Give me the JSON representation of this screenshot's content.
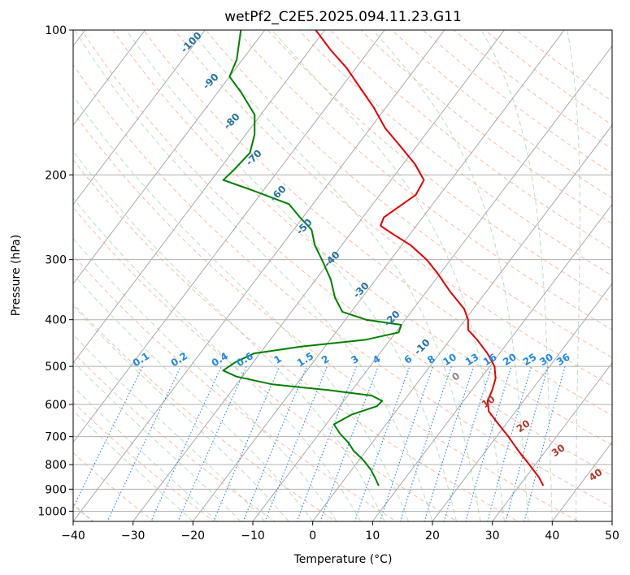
{
  "chart_data": {
    "type": "line",
    "subtype": "skew-t log-p diagram",
    "title": "wetPf2_C2E5.2025.094.11.23.G11",
    "xlabel": "Temperature (°C)",
    "ylabel": "Pressure (hPa)",
    "xlim": [
      -40,
      50
    ],
    "ylim": [
      1050,
      100
    ],
    "y_scale": "log",
    "grid": true,
    "x_ticks": [
      -40,
      -30,
      -20,
      -10,
      0,
      10,
      20,
      30,
      40,
      50
    ],
    "x_tick_labels": [
      "−40",
      "−30",
      "−20",
      "−10",
      "0",
      "10",
      "20",
      "30",
      "40",
      "50"
    ],
    "y_ticks": [
      100,
      200,
      300,
      400,
      500,
      600,
      700,
      800,
      900,
      1000
    ],
    "y_tick_labels": [
      "100",
      "200",
      "300",
      "400",
      "500",
      "600",
      "700",
      "800",
      "900",
      "1000"
    ],
    "series": [
      {
        "color": "#e00000",
        "points": [
          {
            "p": 885,
            "t": 34.0
          },
          {
            "p": 850,
            "t": 32.2
          },
          {
            "p": 800,
            "t": 29.0
          },
          {
            "p": 750,
            "t": 25.5
          },
          {
            "p": 700,
            "t": 22.0
          },
          {
            "p": 650,
            "t": 18.0
          },
          {
            "p": 620,
            "t": 15.5
          },
          {
            "p": 590,
            "t": 14.0
          },
          {
            "p": 560,
            "t": 13.4
          },
          {
            "p": 530,
            "t": 12.5
          },
          {
            "p": 500,
            "t": 10.8
          },
          {
            "p": 470,
            "t": 8.0
          },
          {
            "p": 440,
            "t": 4.5
          },
          {
            "p": 420,
            "t": 1.8
          },
          {
            "p": 400,
            "t": 0.5
          },
          {
            "p": 380,
            "t": -1.5
          },
          {
            "p": 350,
            "t": -6.0
          },
          {
            "p": 320,
            "t": -10.5
          },
          {
            "p": 300,
            "t": -14.0
          },
          {
            "p": 280,
            "t": -18.5
          },
          {
            "p": 265,
            "t": -23.0
          },
          {
            "p": 255,
            "t": -26.0
          },
          {
            "p": 245,
            "t": -26.5
          },
          {
            "p": 235,
            "t": -25.5
          },
          {
            "p": 220,
            "t": -24.0
          },
          {
            "p": 205,
            "t": -24.5
          },
          {
            "p": 190,
            "t": -28.0
          },
          {
            "p": 175,
            "t": -32.5
          },
          {
            "p": 160,
            "t": -37.5
          },
          {
            "p": 145,
            "t": -42.0
          },
          {
            "p": 130,
            "t": -47.5
          },
          {
            "p": 120,
            "t": -51.5
          },
          {
            "p": 110,
            "t": -56.5
          },
          {
            "p": 100,
            "t": -61.5
          }
        ]
      },
      {
        "color": "#008000",
        "points": [
          {
            "p": 885,
            "t": 6.5
          },
          {
            "p": 860,
            "t": 5.3
          },
          {
            "p": 820,
            "t": 3.2
          },
          {
            "p": 780,
            "t": 0.5
          },
          {
            "p": 750,
            "t": -2.0
          },
          {
            "p": 720,
            "t": -4.0
          },
          {
            "p": 690,
            "t": -6.5
          },
          {
            "p": 660,
            "t": -8.7
          },
          {
            "p": 630,
            "t": -7.0
          },
          {
            "p": 605,
            "t": -3.8
          },
          {
            "p": 590,
            "t": -3.6
          },
          {
            "p": 575,
            "t": -6.0
          },
          {
            "p": 560,
            "t": -14.0
          },
          {
            "p": 545,
            "t": -24.0
          },
          {
            "p": 525,
            "t": -31.0
          },
          {
            "p": 510,
            "t": -34.0
          },
          {
            "p": 490,
            "t": -33.0
          },
          {
            "p": 470,
            "t": -31.0
          },
          {
            "p": 455,
            "t": -24.0
          },
          {
            "p": 440,
            "t": -14.0
          },
          {
            "p": 425,
            "t": -9.5
          },
          {
            "p": 410,
            "t": -10.0
          },
          {
            "p": 400,
            "t": -16.5
          },
          {
            "p": 385,
            "t": -21.5
          },
          {
            "p": 360,
            "t": -24.5
          },
          {
            "p": 330,
            "t": -27.5
          },
          {
            "p": 300,
            "t": -31.5
          },
          {
            "p": 280,
            "t": -34.5
          },
          {
            "p": 260,
            "t": -37.0
          },
          {
            "p": 245,
            "t": -40.5
          },
          {
            "p": 230,
            "t": -44.0
          },
          {
            "p": 215,
            "t": -52.0
          },
          {
            "p": 205,
            "t": -58.0
          },
          {
            "p": 195,
            "t": -57.5
          },
          {
            "p": 180,
            "t": -57.0
          },
          {
            "p": 165,
            "t": -58.5
          },
          {
            "p": 150,
            "t": -61.0
          },
          {
            "p": 135,
            "t": -66.0
          },
          {
            "p": 125,
            "t": -70.0
          },
          {
            "p": 115,
            "t": -71.0
          },
          {
            "p": 100,
            "t": -74.0
          }
        ]
      }
    ],
    "mixing_ratio_labels": [
      "0.1",
      "0.2",
      "0.4",
      "0.6",
      "1",
      "1.5",
      "2",
      "3",
      "4",
      "6",
      "8",
      "10",
      "13",
      "16",
      "20",
      "25",
      "30",
      "36"
    ],
    "mixing_ratio_values": [
      0.1,
      0.2,
      0.4,
      0.6,
      1,
      1.5,
      2,
      3,
      4,
      6,
      8,
      10,
      13,
      16,
      20,
      25,
      30,
      36
    ],
    "dry_adiabat_labels": [
      "0",
      "10",
      "20",
      "30",
      "40"
    ],
    "moist_adiabat_labels": [
      "-100",
      "-90",
      "-80",
      "-70",
      "-60",
      "-50",
      "-40",
      "-30",
      "-20",
      "-10"
    ]
  }
}
